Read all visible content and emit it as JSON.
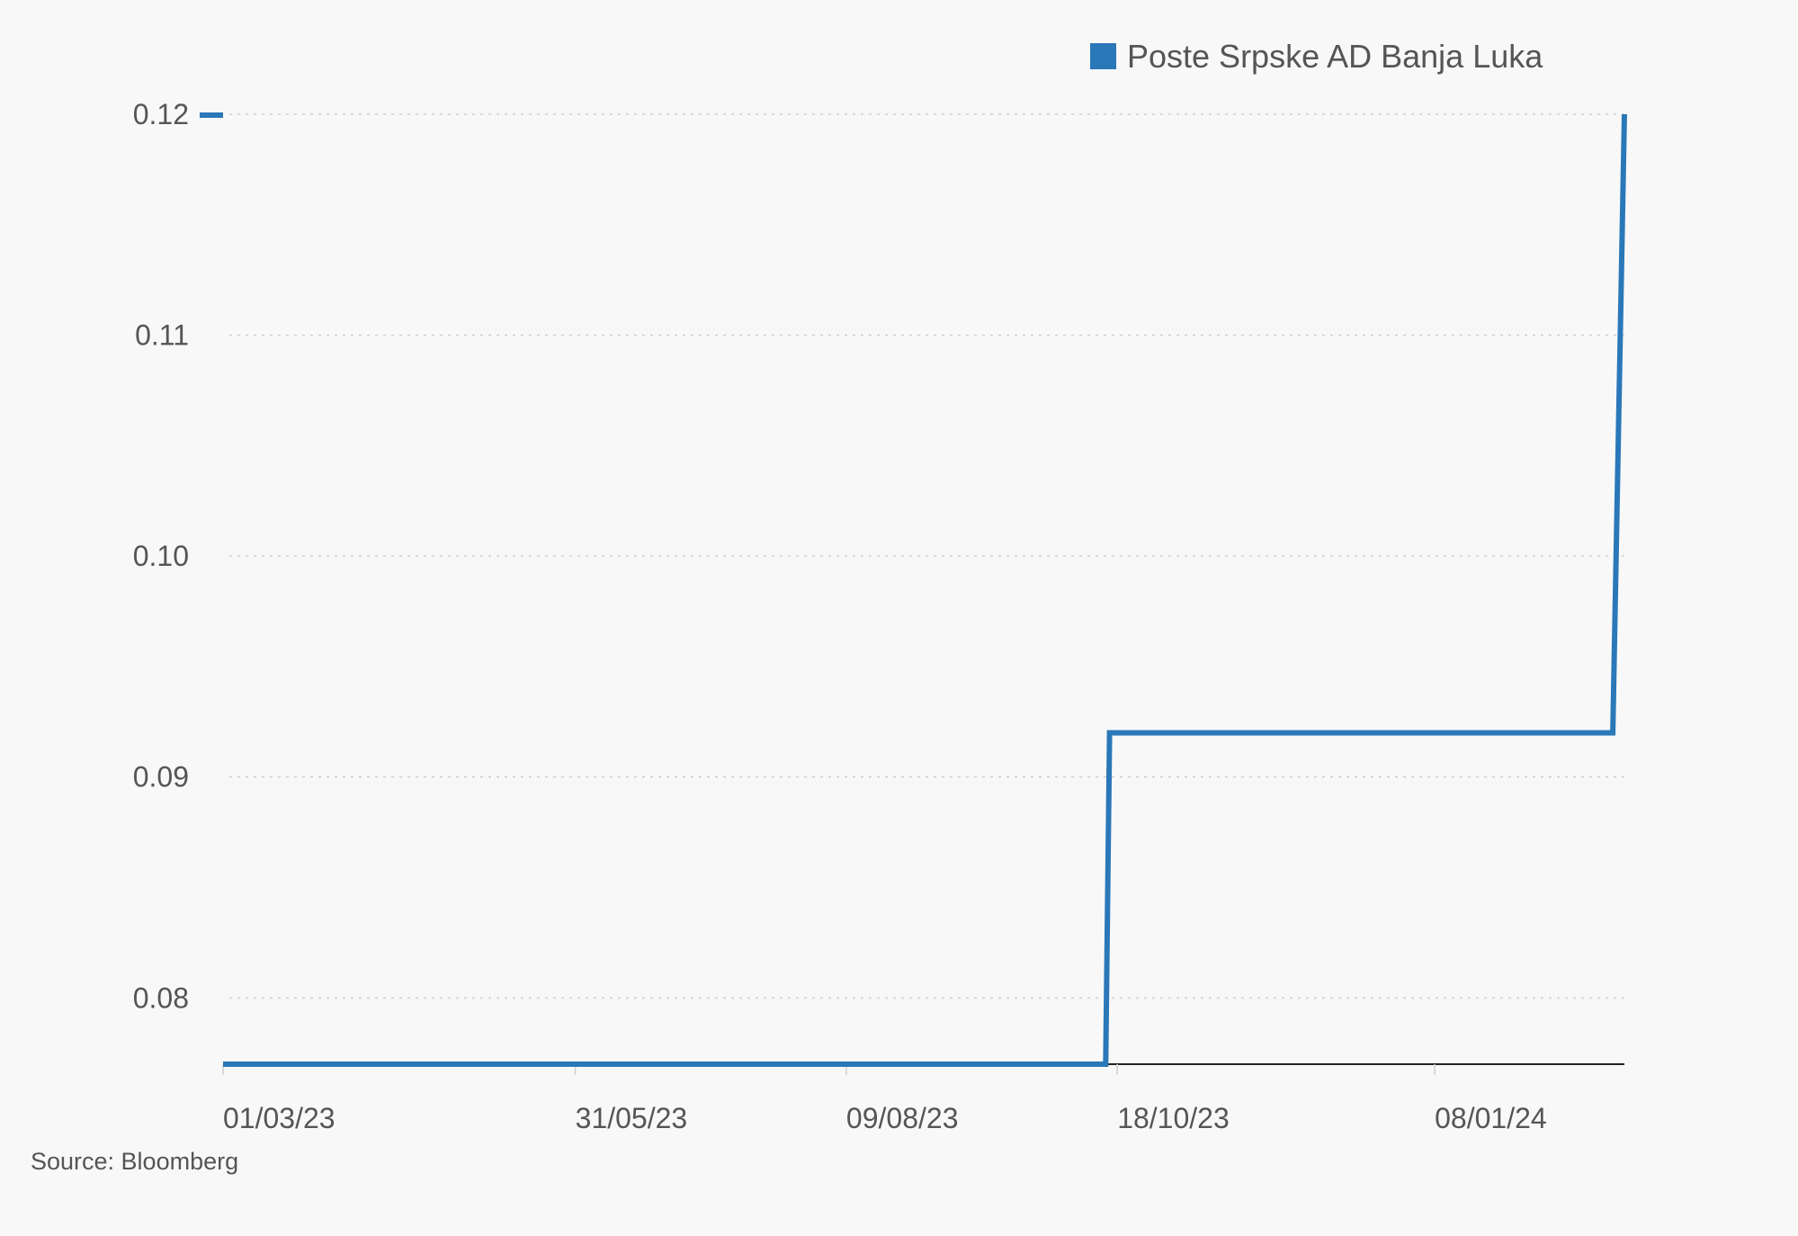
{
  "chart_data": {
    "type": "line",
    "step": true,
    "title": "",
    "xlabel": "",
    "ylabel": "",
    "ylim": [
      0.077,
      0.12
    ],
    "xlim": [
      "2023-03-01",
      "2024-02-26"
    ],
    "y_ticks": [
      {
        "value": 0.08,
        "label": "0.08"
      },
      {
        "value": 0.09,
        "label": "0.09"
      },
      {
        "value": 0.1,
        "label": "0.10"
      },
      {
        "value": 0.11,
        "label": "0.11"
      },
      {
        "value": 0.12,
        "label": "0.12"
      }
    ],
    "x_ticks": [
      {
        "date": "2023-03-01",
        "label": "01/03/23"
      },
      {
        "date": "2023-05-31",
        "label": "31/05/23"
      },
      {
        "date": "2023-08-09",
        "label": "09/08/23"
      },
      {
        "date": "2023-10-18",
        "label": "18/10/23"
      },
      {
        "date": "2024-01-08",
        "label": "08/01/24"
      }
    ],
    "grid": true,
    "legend_position": "top-right",
    "series": [
      {
        "name": "Poste Srpske AD Banja Luka",
        "color": "#2a78b8",
        "points": [
          {
            "x": "2023-03-01",
            "y": 0.077
          },
          {
            "x": "2023-10-15",
            "y": 0.077
          },
          {
            "x": "2023-10-16",
            "y": 0.092
          },
          {
            "x": "2024-02-23",
            "y": 0.092
          },
          {
            "x": "2024-02-26",
            "y": 0.12
          }
        ]
      }
    ],
    "source": "Source: Bloomberg"
  }
}
